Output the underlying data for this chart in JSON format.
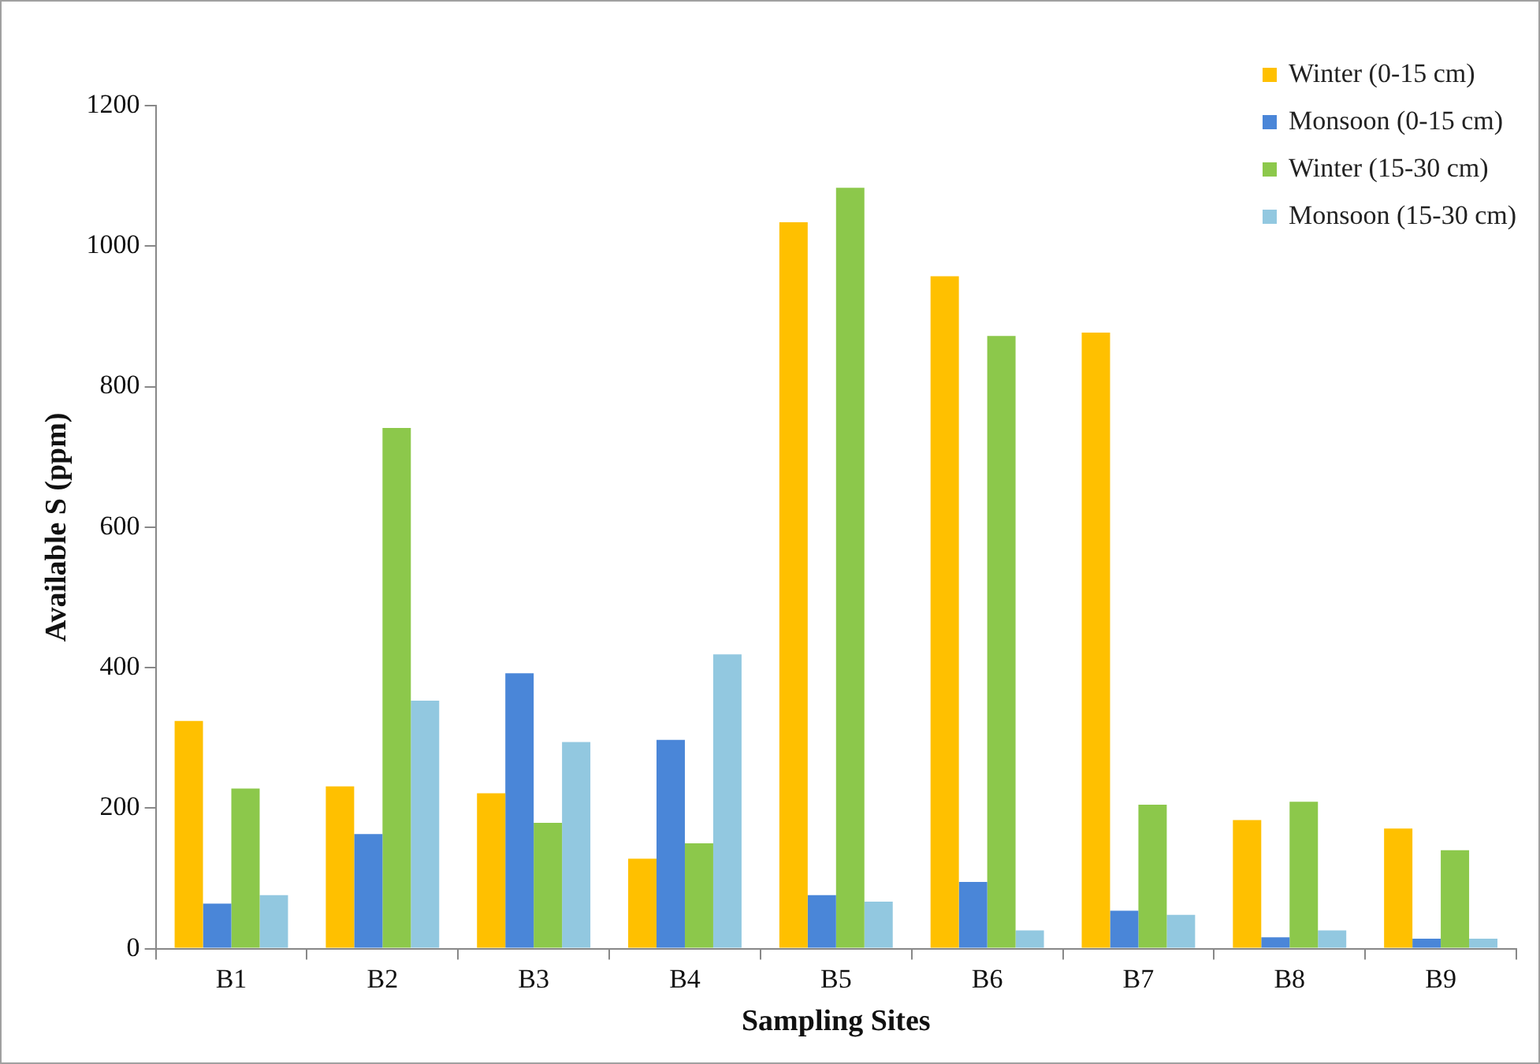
{
  "chart_data": {
    "type": "bar",
    "xlabel": "Sampling Sites",
    "ylabel": "Available S (ppm)",
    "categories": [
      "B1",
      "B2",
      "B3",
      "B4",
      "B5",
      "B6",
      "B7",
      "B8",
      "B9"
    ],
    "series": [
      {
        "name": "Winter (0-15 cm)",
        "color": "#ffc000",
        "values": [
          324,
          231,
          221,
          128,
          1034,
          957,
          877,
          183,
          171
        ]
      },
      {
        "name": "Monsoon (0-15 cm)",
        "color": "#4a86d8",
        "values": [
          64,
          163,
          392,
          297,
          76,
          95,
          54,
          16,
          14
        ]
      },
      {
        "name": "Winter (15-30 cm)",
        "color": "#8cc84b",
        "values": [
          228,
          741,
          179,
          150,
          1083,
          872,
          205,
          209,
          140
        ]
      },
      {
        "name": "Monsoon (15-30 cm)",
        "color": "#92c8e0",
        "values": [
          76,
          353,
          294,
          419,
          67,
          26,
          48,
          26,
          14
        ]
      }
    ],
    "ylim": [
      0,
      1200
    ],
    "yticks": [
      0,
      200,
      400,
      600,
      800,
      1000,
      1200
    ],
    "grid": false,
    "legend": "top right"
  }
}
